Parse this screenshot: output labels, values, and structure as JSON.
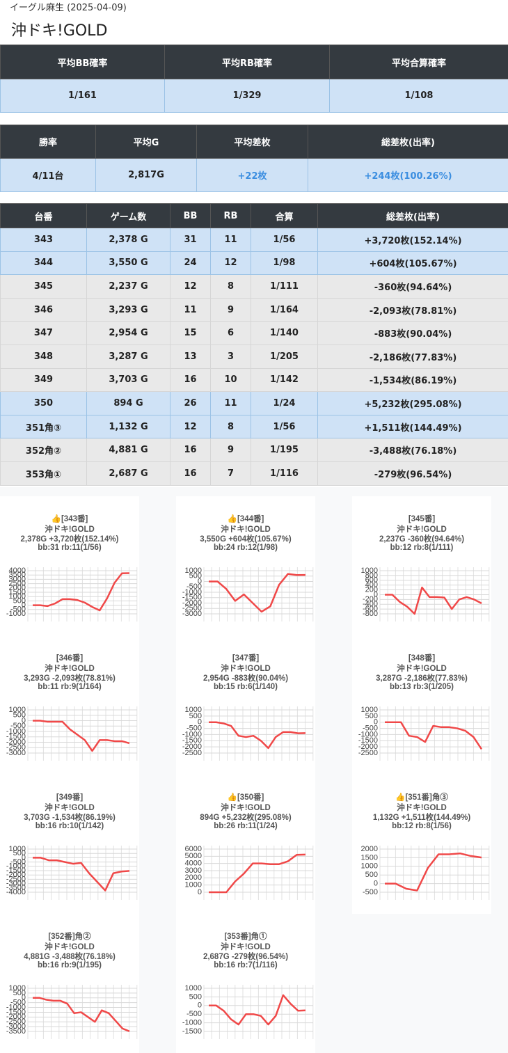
{
  "header": {
    "subtitle": "イーグル麻生 (2025-04-09)",
    "title": "沖ドキ!GOLD"
  },
  "summary1": {
    "headers": [
      "平均BB確率",
      "平均RB確率",
      "平均合算確率"
    ],
    "rows": [
      [
        "1/161",
        "1/329",
        "1/108"
      ]
    ]
  },
  "summary2": {
    "headers": [
      "勝率",
      "平均G",
      "平均差枚",
      "総差枚(出率)"
    ],
    "rows": [
      [
        "4/11台",
        "2,817G",
        "+22枚",
        "+244枚(100.26%)"
      ]
    ]
  },
  "table": {
    "headers": [
      "台番",
      "ゲーム数",
      "BB",
      "RB",
      "合算",
      "総差枚(出率)"
    ],
    "rows": [
      [
        "343",
        "2,378 G",
        "31",
        "11",
        "1/56",
        "+3,720枚(152.14%)"
      ],
      [
        "344",
        "3,550 G",
        "24",
        "12",
        "1/98",
        "+604枚(105.67%)"
      ],
      [
        "345",
        "2,237 G",
        "12",
        "8",
        "1/111",
        "-360枚(94.64%)"
      ],
      [
        "346",
        "3,293 G",
        "11",
        "9",
        "1/164",
        "-2,093枚(78.81%)"
      ],
      [
        "347",
        "2,954 G",
        "15",
        "6",
        "1/140",
        "-883枚(90.04%)"
      ],
      [
        "348",
        "3,287 G",
        "13",
        "3",
        "1/205",
        "-2,186枚(77.83%)"
      ],
      [
        "349",
        "3,703 G",
        "16",
        "10",
        "1/142",
        "-1,534枚(86.19%)"
      ],
      [
        "350",
        "894 G",
        "26",
        "11",
        "1/24",
        "+5,232枚(295.08%)"
      ],
      [
        "351角③",
        "1,132 G",
        "12",
        "8",
        "1/56",
        "+1,511枚(144.49%)"
      ],
      [
        "352角②",
        "4,881 G",
        "16",
        "9",
        "1/195",
        "-3,488枚(76.18%)"
      ],
      [
        "353角①",
        "2,687 G",
        "16",
        "7",
        "1/116",
        "-279枚(96.54%)"
      ]
    ]
  },
  "chart_data": [
    {
      "type": "line",
      "title_lines": [
        "👍[343番]",
        "沖ドキ!GOLD",
        "2,378G +3,720枚(152.14%)",
        "bb:31 rb:11(1/56)"
      ],
      "color": "#f04848",
      "values": [
        0,
        0,
        -100,
        200,
        700,
        700,
        600,
        300,
        -200,
        -600,
        800,
        2600,
        3700,
        3720
      ],
      "ylim": [
        -1000,
        4000
      ],
      "yticks": [
        4000,
        3500,
        3000,
        2500,
        2000,
        1500,
        1000,
        500,
        0,
        -500,
        -1000
      ]
    },
    {
      "type": "line",
      "title_lines": [
        "👍[344番]",
        "沖ドキ!GOLD",
        "3,550G +604枚(105.67%)",
        "bb:24 rb:12(1/98)"
      ],
      "color": "#f04848",
      "values": [
        0,
        0,
        -700,
        -1800,
        -1200,
        -2000,
        -2800,
        -2300,
        -300,
        700,
        600,
        604
      ],
      "ylim": [
        -3000,
        1000
      ],
      "yticks": [
        1000,
        500,
        0,
        -500,
        -1000,
        -1500,
        -2000,
        -2500,
        -3000
      ]
    },
    {
      "type": "line",
      "title_lines": [
        "[345番]",
        "沖ドキ!GOLD",
        "2,237G -360枚(94.64%)",
        "bb:12 rb:8(1/111)"
      ],
      "color": "#f04848",
      "values": [
        0,
        0,
        -300,
        -500,
        -800,
        300,
        -100,
        -100,
        -120,
        -600,
        -200,
        -100,
        -200,
        -360
      ],
      "ylim": [
        -800,
        1000
      ],
      "yticks": [
        1000,
        800,
        600,
        400,
        200,
        0,
        -200,
        -400,
        -600,
        -800
      ]
    },
    {
      "type": "line",
      "title_lines": [
        "[346番]",
        "沖ドキ!GOLD",
        "3,293G -2,093枚(78.81%)",
        "bb:11 rb:9(1/164)"
      ],
      "color": "#f04848",
      "values": [
        0,
        0,
        -100,
        -100,
        -100,
        -800,
        -1300,
        -1800,
        -2800,
        -1800,
        -1800,
        -1900,
        -1900,
        -2093
      ],
      "ylim": [
        -3000,
        1000
      ],
      "yticks": [
        1000,
        500,
        0,
        -500,
        -1000,
        -1500,
        -2000,
        -2500,
        -3000
      ]
    },
    {
      "type": "line",
      "title_lines": [
        "[347番]",
        "沖ドキ!GOLD",
        "2,954G -883枚(90.04%)",
        "bb:15 rb:6(1/140)"
      ],
      "color": "#f04848",
      "values": [
        0,
        0,
        -100,
        -300,
        -1100,
        -1200,
        -1100,
        -1500,
        -2100,
        -1200,
        -800,
        -800,
        -900,
        -883
      ],
      "ylim": [
        -2500,
        1000
      ],
      "yticks": [
        1000,
        500,
        0,
        -500,
        -1000,
        -1500,
        -2000,
        -2500
      ]
    },
    {
      "type": "line",
      "title_lines": [
        "[348番]",
        "沖ドキ!GOLD",
        "3,287G -2,186枚(77.83%)",
        "bb:13 rb:3(1/205)"
      ],
      "color": "#f04848",
      "values": [
        0,
        0,
        0,
        -1100,
        -1200,
        -1600,
        -300,
        -400,
        -400,
        -500,
        -700,
        -1200,
        -2186
      ],
      "ylim": [
        -2500,
        1000
      ],
      "yticks": [
        1000,
        500,
        0,
        -500,
        -1000,
        -1500,
        -2000,
        -2500
      ]
    },
    {
      "type": "line",
      "title_lines": [
        "[349番]",
        "沖ドキ!GOLD",
        "3,703G -1,534枚(86.19%)",
        "bb:16 rb:10(1/142)"
      ],
      "color": "#f04848",
      "values": [
        0,
        0,
        -300,
        -300,
        -500,
        -700,
        -600,
        -1800,
        -2800,
        -3800,
        -1800,
        -1600,
        -1534
      ],
      "ylim": [
        -4000,
        1000
      ],
      "yticks": [
        1000,
        500,
        0,
        -500,
        -1000,
        -1500,
        -2000,
        -2500,
        -3000,
        -3500,
        -4000
      ]
    },
    {
      "type": "line",
      "title_lines": [
        "👍[350番]",
        "沖ドキ!GOLD",
        "894G +5,232枚(295.08%)",
        "bb:26 rb:11(1/24)"
      ],
      "color": "#f04848",
      "values": [
        0,
        0,
        0,
        1500,
        2600,
        4000,
        4000,
        3900,
        3900,
        4300,
        5200,
        5232
      ],
      "ylim": [
        0,
        6000
      ],
      "yticks": [
        6000,
        5000,
        4000,
        3000,
        2000,
        1000,
        0
      ]
    },
    {
      "type": "line",
      "title_lines": [
        "👍[351番]角③",
        "沖ドキ!GOLD",
        "1,132G +1,511枚(144.49%)",
        "bb:12 rb:8(1/56)"
      ],
      "color": "#f04848",
      "values": [
        0,
        0,
        -300,
        -400,
        900,
        1700,
        1700,
        1750,
        1600,
        1511
      ],
      "ylim": [
        -500,
        2000
      ],
      "yticks": [
        2000,
        1500,
        1000,
        500,
        0,
        -500
      ]
    },
    {
      "type": "line",
      "title_lines": [
        "[352番]角②",
        "沖ドキ!GOLD",
        "4,881G -3,488枚(76.18%)",
        "bb:16 rb:9(1/195)"
      ],
      "color": "#f04848",
      "values": [
        0,
        0,
        -200,
        -300,
        -300,
        -600,
        -1600,
        -1500,
        -2000,
        -2500,
        -1300,
        -1600,
        -2400,
        -3200,
        -3488
      ],
      "ylim": [
        -3500,
        1000
      ],
      "yticks": [
        1000,
        500,
        0,
        -500,
        -1000,
        -1500,
        -2000,
        -2500,
        -3000,
        -3500
      ]
    },
    {
      "type": "line",
      "title_lines": [
        "[353番]角①",
        "沖ドキ!GOLD",
        "2,687G -279枚(96.54%)",
        "bb:16 rb:7(1/116)"
      ],
      "color": "#f04848",
      "values": [
        0,
        0,
        -300,
        -800,
        -1100,
        -500,
        -500,
        -600,
        -1100,
        -600,
        600,
        100,
        -300,
        -279
      ],
      "ylim": [
        -1500,
        1000
      ],
      "yticks": [
        1000,
        500,
        0,
        -500,
        -1000,
        -1500
      ]
    }
  ]
}
